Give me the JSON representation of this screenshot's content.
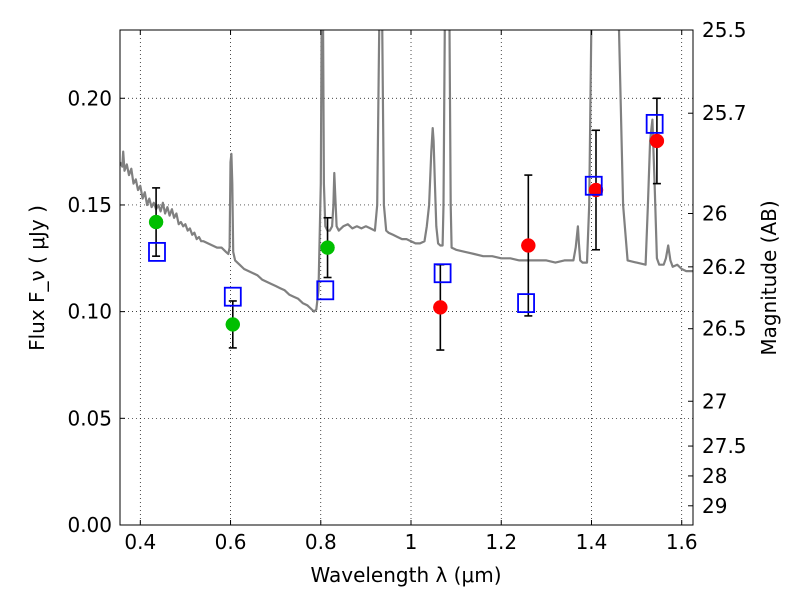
{
  "chart_data": {
    "type": "scatter",
    "title": "",
    "xlabel": "Wavelength  λ (μm)",
    "ylabel": "Flux  F_ν  ( μJy )",
    "ylabel_right": "Magnitude (AB)",
    "xlim": [
      0.355,
      1.625
    ],
    "ylim": [
      0.0,
      0.232
    ],
    "grid": true,
    "x_ticks": [
      {
        "v": 0.4,
        "label": "0.4"
      },
      {
        "v": 0.6,
        "label": "0.6"
      },
      {
        "v": 0.8,
        "label": "0.8"
      },
      {
        "v": 1.0,
        "label": "1"
      },
      {
        "v": 1.2,
        "label": "1.2"
      },
      {
        "v": 1.4,
        "label": "1.4"
      },
      {
        "v": 1.6,
        "label": "1.6"
      }
    ],
    "y_ticks": [
      {
        "v": 0.0,
        "label": "0.00"
      },
      {
        "v": 0.05,
        "label": "0.05"
      },
      {
        "v": 0.1,
        "label": "0.10"
      },
      {
        "v": 0.15,
        "label": "0.15"
      },
      {
        "v": 0.2,
        "label": "0.20"
      }
    ],
    "right_ticks": [
      {
        "flux": 0.232,
        "label": "25.5"
      },
      {
        "flux": 0.193,
        "label": "25.7"
      },
      {
        "flux": 0.146,
        "label": "26"
      },
      {
        "flux": 0.121,
        "label": "26.2"
      },
      {
        "flux": 0.092,
        "label": "26.5"
      },
      {
        "flux": 0.058,
        "label": "27"
      },
      {
        "flux": 0.037,
        "label": "27.5"
      },
      {
        "flux": 0.023,
        "label": "28"
      },
      {
        "flux": 0.009,
        "label": "29"
      }
    ],
    "model_spectrum": {
      "color": "#808080",
      "points": [
        [
          0.355,
          0.17
        ],
        [
          0.36,
          0.168
        ],
        [
          0.362,
          0.175
        ],
        [
          0.365,
          0.166
        ],
        [
          0.37,
          0.169
        ],
        [
          0.375,
          0.164
        ],
        [
          0.38,
          0.167
        ],
        [
          0.385,
          0.16
        ],
        [
          0.39,
          0.162
        ],
        [
          0.395,
          0.157
        ],
        [
          0.4,
          0.159
        ],
        [
          0.405,
          0.153
        ],
        [
          0.41,
          0.156
        ],
        [
          0.415,
          0.15
        ],
        [
          0.42,
          0.153
        ],
        [
          0.425,
          0.149
        ],
        [
          0.43,
          0.151
        ],
        [
          0.435,
          0.148
        ],
        [
          0.44,
          0.15
        ],
        [
          0.445,
          0.147
        ],
        [
          0.45,
          0.151
        ],
        [
          0.455,
          0.146
        ],
        [
          0.46,
          0.149
        ],
        [
          0.465,
          0.145
        ],
        [
          0.47,
          0.148
        ],
        [
          0.475,
          0.144
        ],
        [
          0.48,
          0.146
        ],
        [
          0.485,
          0.141
        ],
        [
          0.49,
          0.142
        ],
        [
          0.495,
          0.14
        ],
        [
          0.5,
          0.141
        ],
        [
          0.505,
          0.138
        ],
        [
          0.51,
          0.139
        ],
        [
          0.515,
          0.136
        ],
        [
          0.52,
          0.137
        ],
        [
          0.525,
          0.134
        ],
        [
          0.53,
          0.135
        ],
        [
          0.535,
          0.133
        ],
        [
          0.54,
          0.133
        ],
        [
          0.55,
          0.132
        ],
        [
          0.56,
          0.131
        ],
        [
          0.57,
          0.13
        ],
        [
          0.58,
          0.13
        ],
        [
          0.59,
          0.128
        ],
        [
          0.595,
          0.127
        ],
        [
          0.598,
          0.13
        ],
        [
          0.6,
          0.17
        ],
        [
          0.602,
          0.174
        ],
        [
          0.604,
          0.16
        ],
        [
          0.606,
          0.128
        ],
        [
          0.61,
          0.124
        ],
        [
          0.62,
          0.122
        ],
        [
          0.63,
          0.12
        ],
        [
          0.64,
          0.119
        ],
        [
          0.65,
          0.118
        ],
        [
          0.66,
          0.117
        ],
        [
          0.67,
          0.115
        ],
        [
          0.68,
          0.114
        ],
        [
          0.69,
          0.113
        ],
        [
          0.7,
          0.112
        ],
        [
          0.71,
          0.111
        ],
        [
          0.72,
          0.11
        ],
        [
          0.73,
          0.108
        ],
        [
          0.74,
          0.107
        ],
        [
          0.75,
          0.106
        ],
        [
          0.76,
          0.104
        ],
        [
          0.77,
          0.103
        ],
        [
          0.78,
          0.101
        ],
        [
          0.785,
          0.1
        ],
        [
          0.79,
          0.101
        ],
        [
          0.795,
          0.11
        ],
        [
          0.8,
          0.16
        ],
        [
          0.802,
          0.24
        ],
        [
          0.805,
          0.24
        ],
        [
          0.807,
          0.16
        ],
        [
          0.81,
          0.14
        ],
        [
          0.815,
          0.138
        ],
        [
          0.82,
          0.138
        ],
        [
          0.825,
          0.14
        ],
        [
          0.828,
          0.15
        ],
        [
          0.83,
          0.165
        ],
        [
          0.832,
          0.155
        ],
        [
          0.835,
          0.14
        ],
        [
          0.84,
          0.138
        ],
        [
          0.85,
          0.14
        ],
        [
          0.86,
          0.141
        ],
        [
          0.87,
          0.139
        ],
        [
          0.88,
          0.14
        ],
        [
          0.89,
          0.139
        ],
        [
          0.9,
          0.14
        ],
        [
          0.91,
          0.139
        ],
        [
          0.92,
          0.138
        ],
        [
          0.925,
          0.15
        ],
        [
          0.93,
          0.24
        ],
        [
          0.936,
          0.24
        ],
        [
          0.94,
          0.15
        ],
        [
          0.945,
          0.138
        ],
        [
          0.95,
          0.137
        ],
        [
          0.96,
          0.136
        ],
        [
          0.97,
          0.135
        ],
        [
          0.98,
          0.134
        ],
        [
          0.99,
          0.134
        ],
        [
          1.0,
          0.133
        ],
        [
          1.01,
          0.132
        ],
        [
          1.02,
          0.132
        ],
        [
          1.03,
          0.133
        ],
        [
          1.035,
          0.14
        ],
        [
          1.04,
          0.15
        ],
        [
          1.045,
          0.175
        ],
        [
          1.048,
          0.186
        ],
        [
          1.05,
          0.18
        ],
        [
          1.053,
          0.16
        ],
        [
          1.056,
          0.14
        ],
        [
          1.06,
          0.132
        ],
        [
          1.065,
          0.131
        ],
        [
          1.07,
          0.131
        ],
        [
          1.072,
          0.15
        ],
        [
          1.075,
          0.24
        ],
        [
          1.085,
          0.24
        ],
        [
          1.088,
          0.15
        ],
        [
          1.09,
          0.13
        ],
        [
          1.1,
          0.129
        ],
        [
          1.12,
          0.128
        ],
        [
          1.14,
          0.127
        ],
        [
          1.16,
          0.126
        ],
        [
          1.18,
          0.126
        ],
        [
          1.2,
          0.125
        ],
        [
          1.22,
          0.125
        ],
        [
          1.24,
          0.124
        ],
        [
          1.26,
          0.124
        ],
        [
          1.28,
          0.124
        ],
        [
          1.3,
          0.124
        ],
        [
          1.32,
          0.123
        ],
        [
          1.34,
          0.124
        ],
        [
          1.36,
          0.124
        ],
        [
          1.365,
          0.13
        ],
        [
          1.37,
          0.14
        ],
        [
          1.372,
          0.132
        ],
        [
          1.375,
          0.124
        ],
        [
          1.38,
          0.123
        ],
        [
          1.39,
          0.123
        ],
        [
          1.395,
          0.15
        ],
        [
          1.4,
          0.24
        ],
        [
          1.46,
          0.24
        ],
        [
          1.47,
          0.15
        ],
        [
          1.48,
          0.124
        ],
        [
          1.5,
          0.123
        ],
        [
          1.52,
          0.122
        ],
        [
          1.525,
          0.15
        ],
        [
          1.53,
          0.18
        ],
        [
          1.535,
          0.19
        ],
        [
          1.54,
          0.16
        ],
        [
          1.545,
          0.125
        ],
        [
          1.55,
          0.122
        ],
        [
          1.56,
          0.122
        ],
        [
          1.565,
          0.125
        ],
        [
          1.57,
          0.131
        ],
        [
          1.575,
          0.124
        ],
        [
          1.58,
          0.121
        ],
        [
          1.59,
          0.122
        ],
        [
          1.6,
          0.12
        ],
        [
          1.61,
          0.119
        ],
        [
          1.62,
          0.119
        ],
        [
          1.625,
          0.119
        ]
      ]
    },
    "series": [
      {
        "color": "#00bf00",
        "marker": "circle",
        "points": [
          {
            "x": 0.435,
            "y": 0.142,
            "err": 0.016
          },
          {
            "x": 0.605,
            "y": 0.094,
            "err": 0.011
          },
          {
            "x": 0.815,
            "y": 0.13,
            "err": 0.014
          }
        ]
      },
      {
        "color": "#ff0000",
        "marker": "circle",
        "points": [
          {
            "x": 1.065,
            "y": 0.102,
            "err": 0.02
          },
          {
            "x": 1.26,
            "y": 0.131,
            "err": 0.033
          },
          {
            "x": 1.41,
            "y": 0.157,
            "err": 0.028
          },
          {
            "x": 1.545,
            "y": 0.18,
            "err": 0.02
          }
        ]
      },
      {
        "color": "#0000ff",
        "marker": "square",
        "points": [
          {
            "x": 0.437,
            "y": 0.128
          },
          {
            "x": 0.605,
            "y": 0.107
          },
          {
            "x": 0.81,
            "y": 0.11
          },
          {
            "x": 1.07,
            "y": 0.118
          },
          {
            "x": 1.255,
            "y": 0.104
          },
          {
            "x": 1.405,
            "y": 0.159
          },
          {
            "x": 1.54,
            "y": 0.188
          }
        ]
      }
    ]
  }
}
